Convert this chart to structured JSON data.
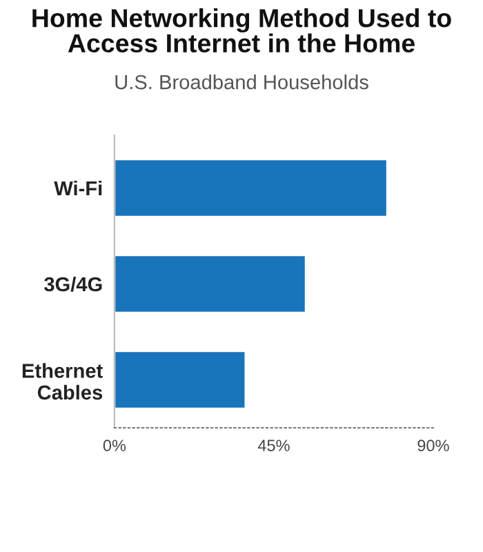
{
  "chart_data": {
    "type": "bar",
    "orientation": "horizontal",
    "title": "Home Networking Method Used to\nAccess Internet in the Home",
    "subtitle": "U.S. Broadband Households",
    "categories": [
      "Wi-Fi",
      "3G/4G",
      "Ethernet\nCables"
    ],
    "values": [
      77,
      54,
      37
    ],
    "color": "#1874bb",
    "xlim": [
      0,
      90
    ],
    "xticks": [
      {
        "value": 0,
        "label": "0%"
      },
      {
        "value": 45,
        "label": "45%"
      },
      {
        "value": 90,
        "label": "90%"
      }
    ],
    "grid": false
  }
}
